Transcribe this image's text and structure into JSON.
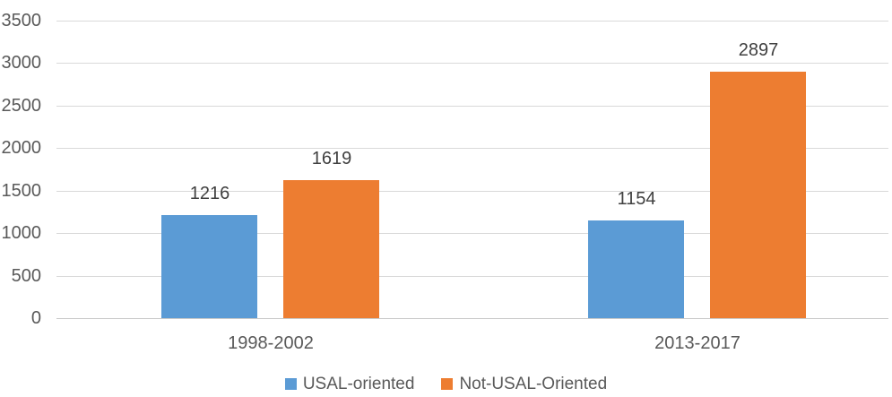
{
  "chart_data": {
    "type": "bar",
    "title": "",
    "xlabel": "",
    "ylabel": "",
    "categories": [
      "1998-2002",
      "2013-2017"
    ],
    "series": [
      {
        "name": "USAL-oriented",
        "color": "#5B9BD5",
        "values": [
          1216,
          1154
        ]
      },
      {
        "name": "Not-USAL-Oriented",
        "color": "#ED7D31",
        "values": [
          1619,
          2897
        ]
      }
    ],
    "data_labels": [
      [
        "1216",
        "1154"
      ],
      [
        "1619",
        "2897"
      ]
    ],
    "ylim": [
      0,
      3500
    ],
    "yticks": [
      0,
      500,
      1000,
      1500,
      2000,
      2500,
      3000,
      3500
    ],
    "ytick_labels": [
      "0",
      "500",
      "1000",
      "1500",
      "2000",
      "2500",
      "3000",
      "3500"
    ],
    "grid": true,
    "legend_position": "bottom",
    "colors": {
      "gridline": "#D9D9D9",
      "axis_line": "#C9C9C9",
      "axis_text": "#595959",
      "data_label_text": "#404040",
      "background": "#FFFFFF"
    }
  }
}
